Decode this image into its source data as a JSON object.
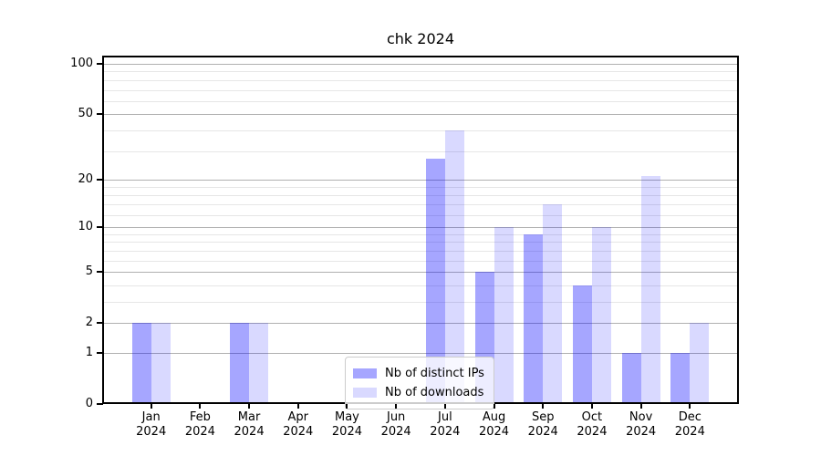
{
  "chart_data": {
    "type": "bar",
    "title": "chk 2024",
    "categories": [
      "Jan 2024",
      "Feb 2024",
      "Mar 2024",
      "Apr 2024",
      "May 2024",
      "Jun 2024",
      "Jul 2024",
      "Aug 2024",
      "Sep 2024",
      "Oct 2024",
      "Nov 2024",
      "Dec 2024"
    ],
    "months": [
      "Jan",
      "Feb",
      "Mar",
      "Apr",
      "May",
      "Jun",
      "Jul",
      "Aug",
      "Sep",
      "Oct",
      "Nov",
      "Dec"
    ],
    "year": "2024",
    "series": [
      {
        "name": "Nb of distinct IPs",
        "color": "rgba(0,0,255,0.35)",
        "color_hex_on_white": "#a6a6ff",
        "values": [
          2,
          0,
          2,
          0,
          0,
          0,
          27,
          5,
          9,
          4,
          1,
          1
        ]
      },
      {
        "name": "Nb of downloads",
        "color": "rgba(0,0,255,0.15)",
        "color_hex_on_white": "#d9d9ff",
        "values": [
          2,
          0,
          2,
          0,
          0,
          0,
          40,
          10,
          14,
          10,
          21,
          2
        ]
      }
    ],
    "xlabel": "",
    "ylabel": "",
    "scale": "log10(1+y)",
    "yticks": [
      0,
      1,
      2,
      5,
      10,
      20,
      50,
      100
    ],
    "yticks_minor": [
      3,
      4,
      6,
      7,
      8,
      9,
      12,
      14,
      16,
      18,
      30,
      40,
      60,
      70,
      80,
      90
    ],
    "ylim": [
      0,
      112
    ],
    "xlim": [
      -1,
      12
    ],
    "grid": true,
    "legend_position": "lower center",
    "bar_width_units": 0.4
  },
  "colors": {
    "grid_major": "#b0b0b0",
    "grid_minor": "#e6e6e6",
    "spine": "#000000",
    "background": "#ffffff",
    "text": "#000000",
    "legend_border": "#cccccc"
  }
}
